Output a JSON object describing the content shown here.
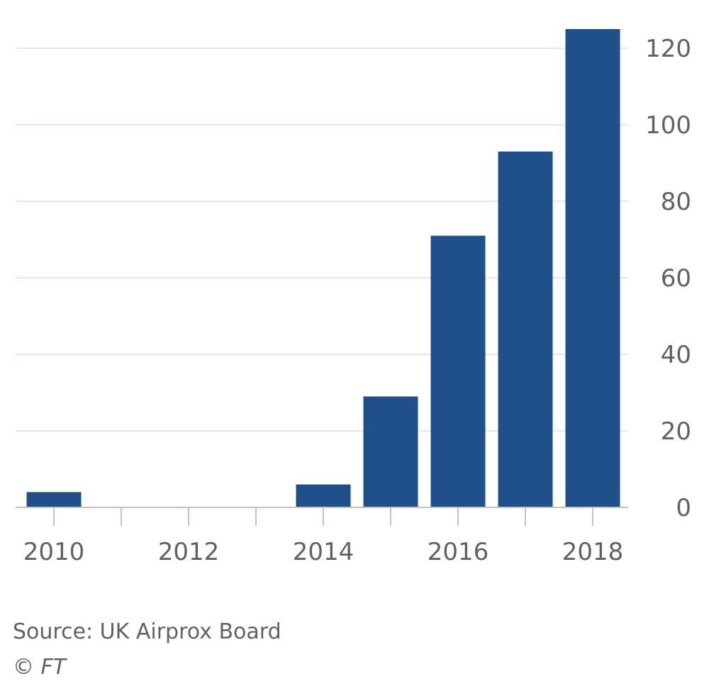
{
  "chart_data": {
    "type": "bar",
    "x": [
      2010,
      2011,
      2012,
      2013,
      2014,
      2015,
      2016,
      2017,
      2018
    ],
    "values": [
      4,
      0,
      0,
      0,
      6,
      29,
      71,
      93,
      125
    ],
    "x_tick_labels": [
      "2010",
      "2012",
      "2014",
      "2016",
      "2018"
    ],
    "y_ticks": [
      0,
      20,
      40,
      60,
      80,
      100,
      120
    ],
    "ylim": [
      0,
      125
    ],
    "y_axis_side": "right",
    "grid": true,
    "bar_color": "#1f5089",
    "title": "",
    "xlabel": "",
    "ylabel": ""
  },
  "footer": {
    "source": "Source: UK Airprox Board",
    "copyright": "© FT"
  }
}
